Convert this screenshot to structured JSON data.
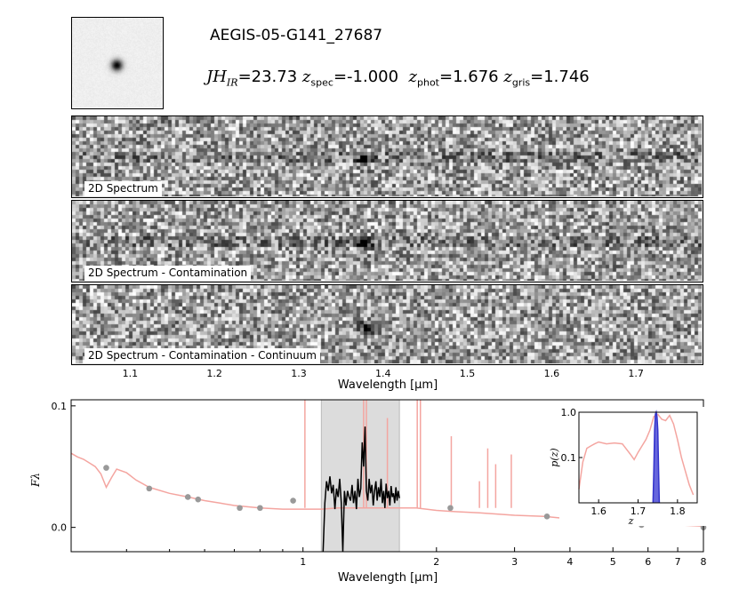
{
  "header": {
    "object_id": "AEGIS-05-G141_27687",
    "mag_label": "JH",
    "mag_sub": "IR",
    "mag_value": "=23.73",
    "zspec_label": "z",
    "zspec_sub": "spec",
    "zspec_value": "=-1.000",
    "zphot_label": "z",
    "zphot_sub": "phot",
    "zphot_value": "=1.676",
    "zgris_label": "z",
    "zgris_sub": "gris",
    "zgris_value": "=1.746"
  },
  "spectra_2d": {
    "panels": [
      {
        "label": "2D Spectrum"
      },
      {
        "label": "2D Spectrum - Contamination"
      },
      {
        "label": "2D Spectrum - Contamination - Continuum"
      }
    ],
    "xlabel": "Wavelength [μm]",
    "ticks": [
      "1.1",
      "1.2",
      "1.3",
      "1.4",
      "1.5",
      "1.6",
      "1.7"
    ]
  },
  "chart_data": [
    {
      "type": "line",
      "xlabel": "Wavelength [μm]",
      "ylabel": "Fλ",
      "x_scale": "log",
      "xlim": [
        0.3,
        8.0
      ],
      "ylim": [
        -0.02,
        0.105
      ],
      "x_ticks": [
        "1",
        "2",
        "3",
        "4",
        "5",
        "6",
        "7",
        "8"
      ],
      "y_ticks": [
        "0.0",
        "0.1"
      ],
      "shaded_region": [
        1.1,
        1.65
      ],
      "colors": {
        "sed": "#f4a5a0",
        "grism": "#000000",
        "photometry": "#999999",
        "shade": "#dcdcdc"
      },
      "sed_model": {
        "x": [
          0.3,
          0.31,
          0.32,
          0.33,
          0.34,
          0.35,
          0.36,
          0.37,
          0.38,
          0.4,
          0.42,
          0.45,
          0.5,
          0.55,
          0.6,
          0.65,
          0.7,
          0.8,
          0.9,
          1.0,
          1.1,
          1.2,
          1.3,
          1.4,
          1.5,
          1.6,
          1.7,
          1.8,
          2.0,
          2.2,
          2.5,
          3.0,
          3.5,
          4.0,
          4.5,
          5.0,
          6.0,
          7.0,
          8.0
        ],
        "y": [
          0.061,
          0.058,
          0.056,
          0.053,
          0.05,
          0.044,
          0.033,
          0.041,
          0.048,
          0.045,
          0.039,
          0.033,
          0.028,
          0.025,
          0.022,
          0.02,
          0.018,
          0.016,
          0.015,
          0.015,
          0.015,
          0.016,
          0.016,
          0.016,
          0.016,
          0.016,
          0.016,
          0.016,
          0.014,
          0.013,
          0.012,
          0.01,
          0.009,
          0.007,
          0.006,
          0.005,
          0.003,
          0.002,
          0.001
        ]
      },
      "emission_lines": [
        {
          "x": 1.01,
          "height": 0.105
        },
        {
          "x": 1.37,
          "height": 0.105
        },
        {
          "x": 1.39,
          "height": 0.105
        },
        {
          "x": 1.55,
          "height": 0.09
        },
        {
          "x": 1.81,
          "height": 0.105
        },
        {
          "x": 1.84,
          "height": 0.105
        },
        {
          "x": 2.16,
          "height": 0.075
        },
        {
          "x": 2.5,
          "height": 0.038
        },
        {
          "x": 2.61,
          "height": 0.065
        },
        {
          "x": 2.72,
          "height": 0.052
        },
        {
          "x": 2.95,
          "height": 0.06
        }
      ],
      "photometry": {
        "x": [
          0.36,
          0.45,
          0.55,
          0.58,
          0.72,
          0.8,
          0.95,
          2.15,
          3.55,
          4.5,
          5.8,
          8.0
        ],
        "y": [
          0.049,
          0.032,
          0.025,
          0.023,
          0.016,
          0.016,
          0.022,
          0.016,
          0.009,
          0.007,
          0.002,
          0.0
        ]
      },
      "grism": {
        "x": [
          1.11,
          1.12,
          1.13,
          1.14,
          1.15,
          1.16,
          1.17,
          1.18,
          1.19,
          1.2,
          1.21,
          1.22,
          1.23,
          1.24,
          1.25,
          1.26,
          1.27,
          1.28,
          1.29,
          1.3,
          1.31,
          1.32,
          1.33,
          1.34,
          1.35,
          1.36,
          1.37,
          1.38,
          1.39,
          1.4,
          1.41,
          1.42,
          1.43,
          1.44,
          1.45,
          1.46,
          1.47,
          1.48,
          1.49,
          1.5,
          1.51,
          1.52,
          1.53,
          1.54,
          1.55,
          1.56,
          1.57,
          1.58,
          1.59,
          1.6,
          1.61,
          1.62,
          1.63,
          1.64,
          1.65
        ],
        "y": [
          -0.02,
          0.02,
          0.038,
          0.03,
          0.042,
          0.028,
          0.035,
          0.015,
          0.032,
          0.025,
          0.04,
          0.02,
          -0.02,
          0.03,
          0.018,
          0.03,
          0.025,
          0.022,
          0.035,
          0.02,
          0.03,
          0.015,
          0.04,
          0.025,
          0.032,
          0.07,
          0.05,
          0.083,
          0.03,
          0.022,
          0.04,
          0.028,
          0.035,
          0.018,
          0.03,
          0.038,
          0.022,
          0.033,
          0.025,
          0.04,
          0.02,
          0.03,
          0.016,
          0.036,
          0.024,
          0.03,
          0.018,
          0.034,
          0.025,
          0.028,
          0.02,
          0.033,
          0.022,
          0.03,
          0.024
        ]
      }
    },
    {
      "type": "line",
      "xlabel": "z",
      "ylabel": "p(z)",
      "y_scale": "log",
      "xlim": [
        1.55,
        1.85
      ],
      "ylim": [
        0.01,
        1.0
      ],
      "x_ticks": [
        "1.6",
        "1.7",
        "1.8"
      ],
      "y_ticks": [
        "0.1",
        "1.0"
      ],
      "colors": {
        "pz": "#f4a5a0",
        "pz_grism": "#3333cc"
      },
      "pz": {
        "x": [
          1.55,
          1.56,
          1.57,
          1.58,
          1.59,
          1.6,
          1.62,
          1.64,
          1.66,
          1.68,
          1.69,
          1.7,
          1.71,
          1.72,
          1.73,
          1.74,
          1.75,
          1.76,
          1.77,
          1.78,
          1.79,
          1.8,
          1.81,
          1.82,
          1.83,
          1.84
        ],
        "y": [
          0.02,
          0.08,
          0.16,
          0.18,
          0.2,
          0.22,
          0.2,
          0.21,
          0.2,
          0.12,
          0.09,
          0.13,
          0.18,
          0.25,
          0.4,
          0.8,
          0.9,
          0.7,
          0.65,
          0.85,
          0.55,
          0.25,
          0.1,
          0.05,
          0.025,
          0.015
        ]
      },
      "pz_grism": {
        "x": [
          1.738,
          1.74,
          1.742,
          1.744,
          1.746,
          1.748,
          1.75,
          1.752,
          1.754
        ],
        "y": [
          0.01,
          0.05,
          0.4,
          0.9,
          1.0,
          0.8,
          0.4,
          0.05,
          0.01
        ]
      }
    }
  ]
}
